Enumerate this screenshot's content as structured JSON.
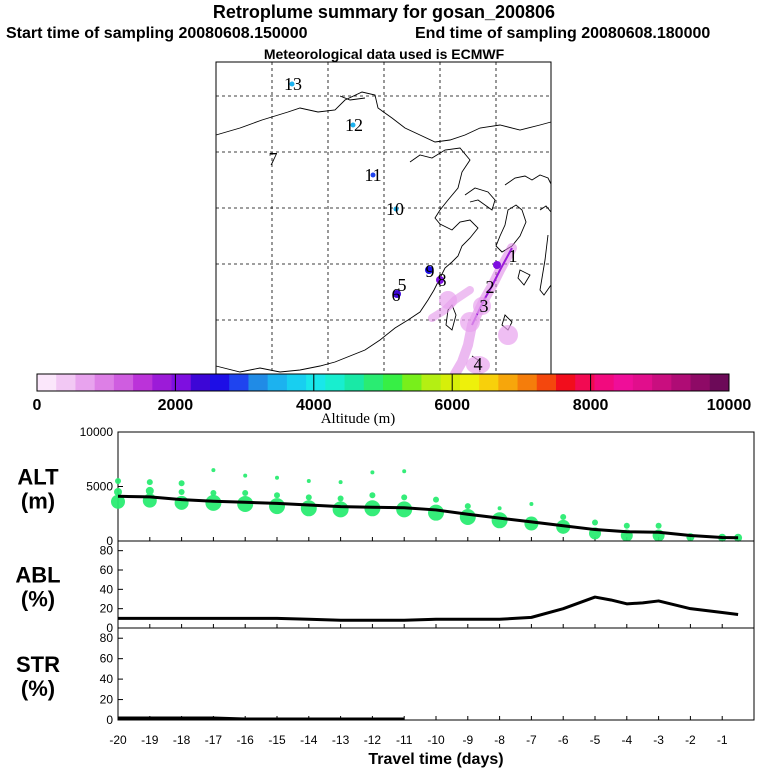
{
  "title": "Retroplume summary for gosan_200806",
  "start_label": "Start time of sampling 20080608.150000",
  "end_label": "End time of sampling 20080608.180000",
  "met_label": "Meteorological data used is ECMWF",
  "colorbar": {
    "title": "Altitude (m)",
    "ticks": [
      "0",
      "2000",
      "4000",
      "6000",
      "8000",
      "10000"
    ],
    "colors": [
      "#fbe7fb",
      "#f2c8f4",
      "#e8a3ee",
      "#dd7fe6",
      "#cf5de0",
      "#bb33d9",
      "#9c1bd8",
      "#7e0fe0",
      "#3d06d6",
      "#1d0ee6",
      "#1f44ef",
      "#208be6",
      "#1cb2ef",
      "#18cff0",
      "#19e7ea",
      "#18eecf",
      "#19e9a6",
      "#2aec72",
      "#37ef45",
      "#78ef1b",
      "#b4ef13",
      "#d6ef0a",
      "#eef00b",
      "#f8d00b",
      "#f7a60b",
      "#f57d0b",
      "#f4470d",
      "#f20d1c",
      "#f20a52",
      "#f20a7e",
      "#ef0e99",
      "#e10e8c",
      "#c90e7f",
      "#af0c75",
      "#8e0a66",
      "#6c0a58"
    ]
  },
  "map": {
    "labels": [
      "1",
      "2",
      "3",
      "4",
      "5",
      "6",
      "7",
      "8",
      "9",
      "10",
      "11",
      "12",
      "13"
    ]
  },
  "panels": {
    "alt": {
      "label1": "ALT",
      "label2": "(m)"
    },
    "abl": {
      "label1": "ABL",
      "label2": "(%)"
    },
    "str": {
      "label1": "STR",
      "label2": "(%)"
    }
  },
  "xlabel": "Travel time (days)",
  "chart_data": [
    {
      "type": "line",
      "name": "ALT",
      "ylabel": "ALT (m)",
      "xlabel": "Travel time (days)",
      "x": [
        -20,
        -19,
        -18,
        -17,
        -16,
        -15,
        -14,
        -13,
        -12,
        -11,
        -10,
        -9,
        -8,
        -7,
        -6,
        -5,
        -4,
        -3,
        -2,
        -1,
        -0.5
      ],
      "y": [
        4100,
        4050,
        3800,
        3650,
        3550,
        3450,
        3300,
        3150,
        3100,
        3050,
        2850,
        2450,
        2100,
        1750,
        1400,
        1050,
        850,
        800,
        500,
        320,
        300
      ],
      "ylim": [
        0,
        10000
      ],
      "yticks": [
        "0",
        "5000",
        "10000"
      ],
      "scatter_points": [
        {
          "x": -20,
          "y": 3600,
          "s": 7
        },
        {
          "x": -20,
          "y": 4500,
          "s": 4
        },
        {
          "x": -20,
          "y": 5500,
          "s": 3
        },
        {
          "x": -19,
          "y": 3700,
          "s": 7
        },
        {
          "x": -19,
          "y": 4600,
          "s": 4
        },
        {
          "x": -19,
          "y": 5400,
          "s": 3
        },
        {
          "x": -18,
          "y": 3500,
          "s": 7
        },
        {
          "x": -18,
          "y": 4500,
          "s": 3
        },
        {
          "x": -18,
          "y": 5300,
          "s": 3
        },
        {
          "x": -17,
          "y": 3500,
          "s": 8
        },
        {
          "x": -17,
          "y": 4400,
          "s": 3
        },
        {
          "x": -17,
          "y": 6500,
          "s": 2
        },
        {
          "x": -16,
          "y": 3400,
          "s": 8
        },
        {
          "x": -16,
          "y": 4400,
          "s": 3
        },
        {
          "x": -16,
          "y": 6000,
          "s": 2
        },
        {
          "x": -15,
          "y": 3200,
          "s": 8
        },
        {
          "x": -15,
          "y": 4200,
          "s": 3
        },
        {
          "x": -15,
          "y": 5800,
          "s": 2
        },
        {
          "x": -14,
          "y": 3000,
          "s": 8
        },
        {
          "x": -14,
          "y": 4000,
          "s": 3
        },
        {
          "x": -14,
          "y": 5500,
          "s": 2
        },
        {
          "x": -13,
          "y": 2900,
          "s": 8
        },
        {
          "x": -13,
          "y": 3900,
          "s": 3
        },
        {
          "x": -13,
          "y": 5400,
          "s": 2
        },
        {
          "x": -12,
          "y": 3000,
          "s": 8
        },
        {
          "x": -12,
          "y": 4200,
          "s": 3
        },
        {
          "x": -12,
          "y": 6300,
          "s": 2
        },
        {
          "x": -11,
          "y": 2900,
          "s": 8
        },
        {
          "x": -11,
          "y": 4000,
          "s": 3
        },
        {
          "x": -11,
          "y": 6400,
          "s": 2
        },
        {
          "x": -10,
          "y": 2600,
          "s": 8
        },
        {
          "x": -10,
          "y": 3800,
          "s": 3
        },
        {
          "x": -9,
          "y": 2200,
          "s": 8
        },
        {
          "x": -9,
          "y": 3200,
          "s": 3
        },
        {
          "x": -8,
          "y": 1900,
          "s": 8
        },
        {
          "x": -8,
          "y": 3000,
          "s": 2
        },
        {
          "x": -7,
          "y": 1600,
          "s": 7
        },
        {
          "x": -7,
          "y": 3400,
          "s": 2
        },
        {
          "x": -6,
          "y": 1300,
          "s": 7
        },
        {
          "x": -6,
          "y": 2200,
          "s": 3
        },
        {
          "x": -5,
          "y": 700,
          "s": 6
        },
        {
          "x": -5,
          "y": 1700,
          "s": 3
        },
        {
          "x": -4,
          "y": 500,
          "s": 6
        },
        {
          "x": -4,
          "y": 1400,
          "s": 3
        },
        {
          "x": -3,
          "y": 500,
          "s": 6
        },
        {
          "x": -3,
          "y": 1400,
          "s": 3
        },
        {
          "x": -2,
          "y": 350,
          "s": 4
        },
        {
          "x": -1,
          "y": 300,
          "s": 4
        },
        {
          "x": -0.5,
          "y": 300,
          "s": 4
        }
      ]
    },
    {
      "type": "line",
      "name": "ABL",
      "ylabel": "ABL (%)",
      "x": [
        -20,
        -19,
        -18,
        -17,
        -16,
        -15,
        -14,
        -13,
        -12,
        -11,
        -10,
        -9,
        -8,
        -7,
        -6,
        -5,
        -4.5,
        -4,
        -3.5,
        -3,
        -2.5,
        -2,
        -1,
        -0.5
      ],
      "y": [
        10,
        10,
        10,
        10,
        10,
        10,
        9,
        8,
        8,
        8,
        9,
        9,
        9,
        11,
        20,
        32,
        29,
        25,
        26,
        28,
        24,
        20,
        16,
        14
      ],
      "ylim": [
        0,
        90
      ],
      "yticks": [
        "0",
        "20",
        "40",
        "60",
        "80"
      ]
    },
    {
      "type": "line",
      "name": "STR",
      "ylabel": "STR (%)",
      "x": [
        -20,
        -19,
        -18,
        -17,
        -16,
        -15,
        -14,
        -13,
        -12,
        -11
      ],
      "y": [
        2,
        2,
        2,
        2,
        1,
        1,
        1,
        1,
        1,
        1
      ],
      "ylim": [
        0,
        90
      ],
      "yticks": [
        "0",
        "20",
        "40",
        "60",
        "80"
      ]
    }
  ],
  "xticks": [
    "-20",
    "-19",
    "-18",
    "-17",
    "-16",
    "-15",
    "-14",
    "-13",
    "-12",
    "-11",
    "-10",
    "-9",
    "-8",
    "-7",
    "-6",
    "-5",
    "-4",
    "-3",
    "-2",
    "-1"
  ]
}
